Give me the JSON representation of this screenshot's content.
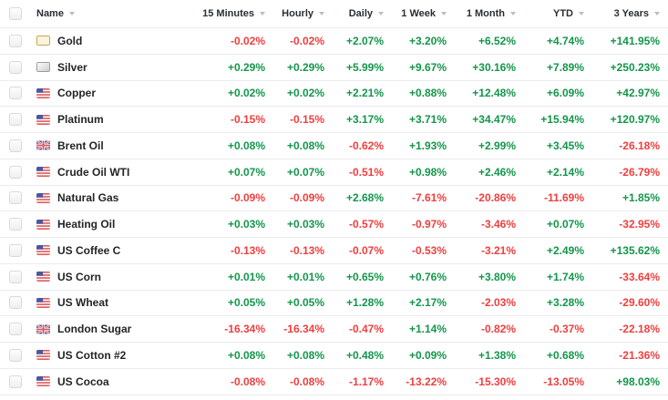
{
  "colors": {
    "positive": "#13964b",
    "negative": "#f03e3e"
  },
  "table": {
    "columns": [
      {
        "label": "Name"
      },
      {
        "label": "15 Minutes"
      },
      {
        "label": "Hourly"
      },
      {
        "label": "Daily"
      },
      {
        "label": "1 Week"
      },
      {
        "label": "1 Month"
      },
      {
        "label": "YTD"
      },
      {
        "label": "3 Years"
      }
    ],
    "rows": [
      {
        "name": "Gold",
        "icon": "gold-bar-icon",
        "values": [
          "-0.02%",
          "-0.02%",
          "+2.07%",
          "+3.20%",
          "+6.52%",
          "+4.74%",
          "+141.95%"
        ]
      },
      {
        "name": "Silver",
        "icon": "silver-bar-icon",
        "values": [
          "+0.29%",
          "+0.29%",
          "+5.99%",
          "+9.67%",
          "+30.16%",
          "+7.89%",
          "+250.23%"
        ]
      },
      {
        "name": "Copper",
        "icon": "us-flag-icon",
        "values": [
          "+0.02%",
          "+0.02%",
          "+2.21%",
          "+0.88%",
          "+12.48%",
          "+6.09%",
          "+42.97%"
        ]
      },
      {
        "name": "Platinum",
        "icon": "us-flag-icon",
        "values": [
          "-0.15%",
          "-0.15%",
          "+3.17%",
          "+3.71%",
          "+34.47%",
          "+15.94%",
          "+120.97%"
        ]
      },
      {
        "name": "Brent Oil",
        "icon": "uk-flag-icon",
        "values": [
          "+0.08%",
          "+0.08%",
          "-0.62%",
          "+1.93%",
          "+2.99%",
          "+3.45%",
          "-26.18%"
        ]
      },
      {
        "name": "Crude Oil WTI",
        "icon": "us-flag-icon",
        "values": [
          "+0.07%",
          "+0.07%",
          "-0.51%",
          "+0.98%",
          "+2.46%",
          "+2.14%",
          "-26.79%"
        ]
      },
      {
        "name": "Natural Gas",
        "icon": "us-flag-icon",
        "values": [
          "-0.09%",
          "-0.09%",
          "+2.68%",
          "-7.61%",
          "-20.86%",
          "-11.69%",
          "+1.85%"
        ]
      },
      {
        "name": "Heating Oil",
        "icon": "us-flag-icon",
        "values": [
          "+0.03%",
          "+0.03%",
          "-0.57%",
          "-0.97%",
          "-3.46%",
          "+0.07%",
          "-32.95%"
        ]
      },
      {
        "name": "US Coffee C",
        "icon": "us-flag-icon",
        "values": [
          "-0.13%",
          "-0.13%",
          "-0.07%",
          "-0.53%",
          "-3.21%",
          "+2.49%",
          "+135.62%"
        ]
      },
      {
        "name": "US Corn",
        "icon": "us-flag-icon",
        "values": [
          "+0.01%",
          "+0.01%",
          "+0.65%",
          "+0.76%",
          "+3.80%",
          "+1.74%",
          "-33.64%"
        ]
      },
      {
        "name": "US Wheat",
        "icon": "us-flag-icon",
        "values": [
          "+0.05%",
          "+0.05%",
          "+1.28%",
          "+2.17%",
          "-2.03%",
          "+3.28%",
          "-29.60%"
        ]
      },
      {
        "name": "London Sugar",
        "icon": "uk-flag-icon",
        "values": [
          "-16.34%",
          "-16.34%",
          "-0.47%",
          "+1.14%",
          "-0.82%",
          "-0.37%",
          "-22.18%"
        ]
      },
      {
        "name": "US Cotton #2",
        "icon": "us-flag-icon",
        "values": [
          "+0.08%",
          "+0.08%",
          "+0.48%",
          "+0.09%",
          "+1.38%",
          "+0.68%",
          "-21.36%"
        ]
      },
      {
        "name": "US Cocoa",
        "icon": "us-flag-icon",
        "values": [
          "-0.08%",
          "-0.08%",
          "-1.17%",
          "-13.22%",
          "-15.30%",
          "-13.05%",
          "+98.03%"
        ]
      }
    ]
  }
}
